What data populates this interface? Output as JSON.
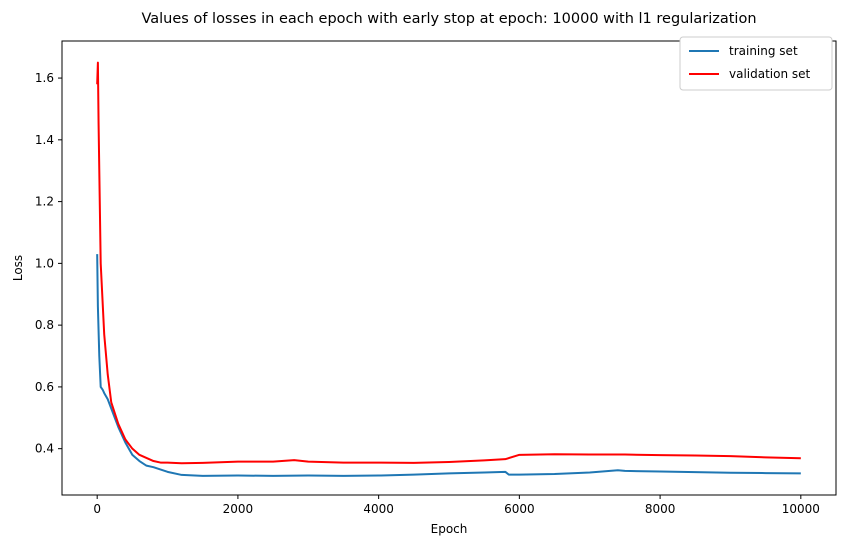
{
  "chart_data": {
    "type": "line",
    "title": "Values of losses in each epoch with early stop at epoch: 10000 with l1 regularization",
    "xlabel": "Epoch",
    "ylabel": "Loss",
    "xlim": [
      -500,
      10500
    ],
    "ylim": [
      0.25,
      1.72
    ],
    "xticks": [
      0,
      2000,
      4000,
      6000,
      8000,
      10000
    ],
    "xtick_labels": [
      "0",
      "2000",
      "4000",
      "6000",
      "8000",
      "10000"
    ],
    "yticks": [
      0.4,
      0.6,
      0.8,
      1.0,
      1.2,
      1.4,
      1.6
    ],
    "ytick_labels": [
      "0.4",
      "0.6",
      "0.8",
      "1.0",
      "1.2",
      "1.4",
      "1.6"
    ],
    "grid": false,
    "legend_position": "top-right",
    "series": [
      {
        "name": "training set",
        "color": "#1f77b4",
        "x": [
          0,
          10,
          30,
          50,
          80,
          100,
          150,
          200,
          300,
          400,
          500,
          600,
          700,
          800,
          1000,
          1200,
          1500,
          2000,
          2500,
          3000,
          3500,
          4000,
          4500,
          5000,
          5500,
          5800,
          5850,
          6000,
          6500,
          7000,
          7400,
          7500,
          8000,
          8500,
          9000,
          9500,
          10000
        ],
        "y": [
          1.03,
          0.86,
          0.7,
          0.6,
          0.59,
          0.58,
          0.56,
          0.53,
          0.47,
          0.42,
          0.38,
          0.36,
          0.345,
          0.34,
          0.325,
          0.315,
          0.312,
          0.313,
          0.312,
          0.313,
          0.312,
          0.313,
          0.316,
          0.32,
          0.323,
          0.325,
          0.316,
          0.316,
          0.318,
          0.323,
          0.33,
          0.328,
          0.326,
          0.324,
          0.322,
          0.321,
          0.32
        ]
      },
      {
        "name": "validation set",
        "color": "#ff0000",
        "x": [
          0,
          10,
          20,
          50,
          100,
          150,
          200,
          300,
          400,
          500,
          600,
          700,
          800,
          900,
          1000,
          1200,
          1500,
          2000,
          2500,
          2800,
          3000,
          3500,
          4000,
          4500,
          5000,
          5500,
          5800,
          6000,
          6500,
          7000,
          7500,
          8000,
          8500,
          9000,
          9500,
          10000
        ],
        "y": [
          1.58,
          1.65,
          1.45,
          1.0,
          0.77,
          0.64,
          0.55,
          0.48,
          0.43,
          0.4,
          0.38,
          0.37,
          0.36,
          0.355,
          0.355,
          0.353,
          0.354,
          0.358,
          0.358,
          0.363,
          0.358,
          0.355,
          0.355,
          0.354,
          0.357,
          0.362,
          0.366,
          0.38,
          0.382,
          0.381,
          0.381,
          0.379,
          0.378,
          0.376,
          0.372,
          0.369
        ]
      }
    ]
  }
}
